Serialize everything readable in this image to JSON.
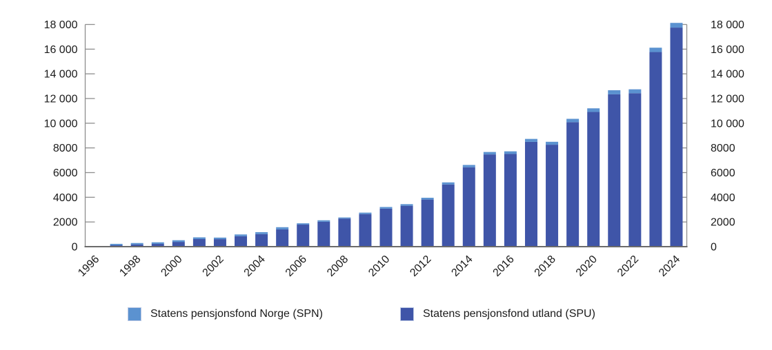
{
  "chart_data": {
    "type": "bar",
    "stacked": true,
    "title": "",
    "categories": [
      "1996",
      "1997",
      "1998",
      "1999",
      "2000",
      "2001",
      "2002",
      "2003",
      "2004",
      "2005",
      "2006",
      "2007",
      "2008",
      "2009",
      "2010",
      "2011",
      "2012",
      "2013",
      "2014",
      "2015",
      "2016",
      "2017",
      "2018",
      "2019",
      "2020",
      "2021",
      "2022",
      "2023",
      "2024"
    ],
    "series": [
      {
        "name": "Statens pensjonsfond Norge (SPN)",
        "color": "#5B92D0",
        "values": [
          0,
          114,
          122,
          131,
          135,
          139,
          125,
          143,
          156,
          177,
          107,
          117,
          88,
          117,
          135,
          130,
          145,
          168,
          187,
          198,
          212,
          240,
          239,
          269,
          292,
          333,
          318,
          353,
          382
        ]
      },
      {
        "name": "Statens pensjonsfond utland (SPU)",
        "color": "#3F55A8",
        "values": [
          0,
          113,
          172,
          222,
          386,
          614,
          609,
          845,
          1016,
          1399,
          1784,
          2019,
          2275,
          2640,
          3077,
          3312,
          3816,
          5038,
          6431,
          7471,
          7510,
          8488,
          8256,
          10086,
          10914,
          12340,
          12429,
          15765,
          17745
        ]
      }
    ],
    "stack_order_bottom_to_top": [
      "Statens pensjonsfond utland (SPU)",
      "Statens pensjonsfond Norge (SPN)"
    ],
    "xlabel": "",
    "ylabel": "",
    "ylim": [
      0,
      18000
    ],
    "y_ticks": [
      0,
      2000,
      4000,
      6000,
      8000,
      10000,
      12000,
      14000,
      16000,
      18000
    ],
    "y_tick_labels": [
      "0",
      "2000",
      "4000",
      "6000",
      "8000",
      "10 000",
      "12 000",
      "14 000",
      "16 000",
      "18 000"
    ],
    "y_axis_sides": [
      "left",
      "right"
    ],
    "x_tick_step_years": 2,
    "x_tick_label_rotation_deg": 45,
    "grid": false,
    "legend_position": "bottom",
    "colors": {
      "axis": "#8e8e8e",
      "baseline": "#6b6b6b",
      "text": "#1a1a1a",
      "background": "#ffffff"
    }
  }
}
